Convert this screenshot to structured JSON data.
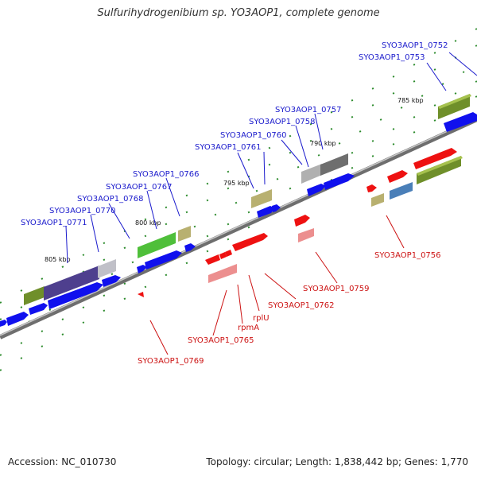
{
  "title": "Sulfurihydrogenibium sp. YO3AOP1, complete genome",
  "footer": {
    "accession": "Accession: NC_010730",
    "topology": "Topology: circular; Length: 1,838,442 bp; Genes: 1,770"
  },
  "scale_labels": [
    "785 kbp",
    "790 kbp",
    "795 kbp",
    "800 kbp",
    "805 kbp"
  ],
  "colors": {
    "forward_label": "#1a1acc",
    "reverse_label": "#cc1111",
    "backbone": "#7a7a7a"
  },
  "forward_gene_labels": [
    "SYO3AOP1_0752",
    "SYO3AOP1_0753",
    "SYO3AOP1_0757",
    "SYO3AOP1_0758",
    "SYO3AOP1_0760",
    "SYO3AOP1_0761",
    "SYO3AOP1_0766",
    "SYO3AOP1_0767",
    "SYO3AOP1_0768",
    "SYO3AOP1_0770",
    "SYO3AOP1_0771"
  ],
  "reverse_gene_labels": [
    "SYO3AOP1_0756",
    "SYO3AOP1_0759",
    "SYO3AOP1_0762",
    "rplU",
    "rpmA",
    "SYO3AOP1_0765",
    "SYO3AOP1_0769"
  ]
}
